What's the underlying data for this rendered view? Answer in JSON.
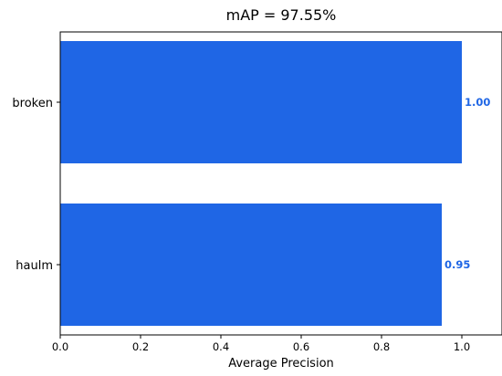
{
  "chart_data": {
    "type": "bar",
    "orientation": "horizontal",
    "title": "mAP = 97.55%",
    "xlabel": "Average Precision",
    "ylabel": "",
    "categories": [
      "broken",
      "haulm"
    ],
    "values": [
      1.0,
      0.95
    ],
    "value_labels": [
      "1.00",
      "0.95"
    ],
    "xlim": [
      0.0,
      1.1
    ],
    "x_ticks": [
      0.0,
      0.2,
      0.4,
      0.6,
      0.8,
      1.0
    ],
    "x_tick_labels": [
      "0.0",
      "0.2",
      "0.4",
      "0.6",
      "0.8",
      "1.0"
    ],
    "grid": false,
    "legend": "none",
    "bar_color": "#1f66e5",
    "label_color": "#1f66e5"
  }
}
